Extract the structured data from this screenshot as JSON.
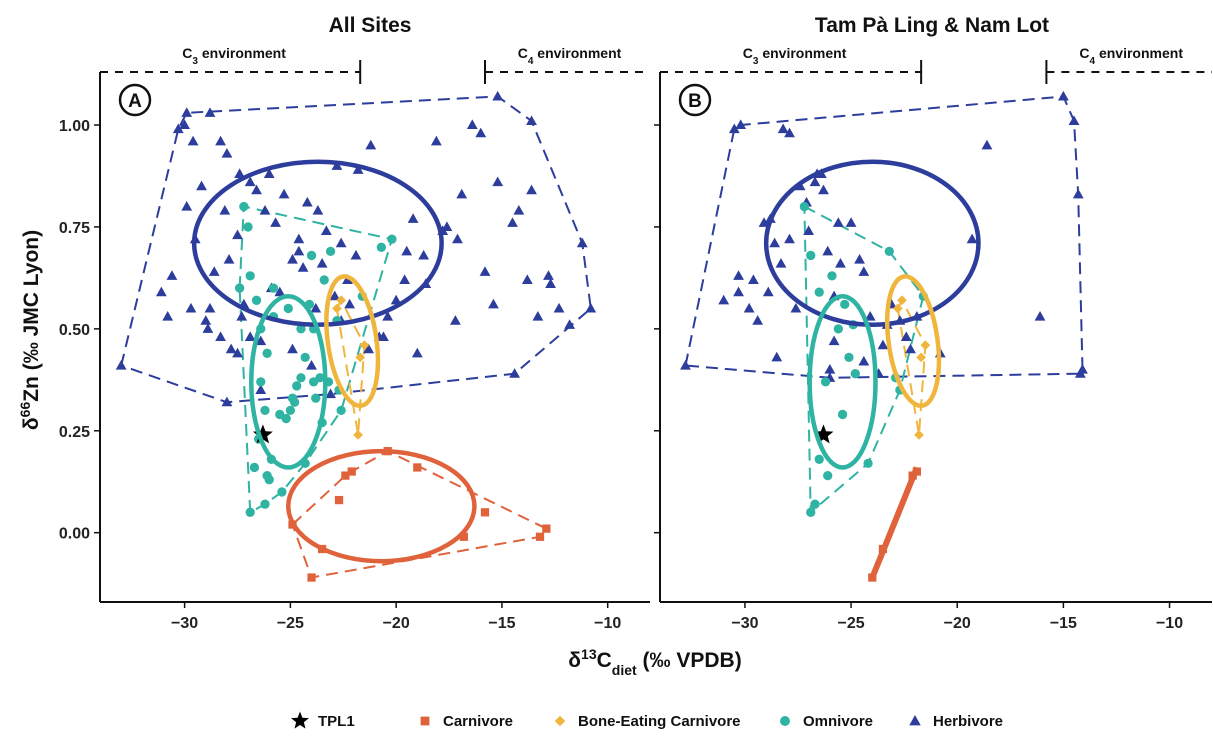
{
  "chart_data": [
    {
      "type": "scatter",
      "title": "All Sites",
      "panel_label": "A",
      "xlim": [
        -34,
        -8
      ],
      "ylim": [
        -0.17,
        1.13
      ],
      "xticks": [
        -30,
        -25,
        -20,
        -15,
        -10
      ],
      "xtick_labels": [
        "−30",
        "−25",
        "−20",
        "−15",
        "−10"
      ],
      "yticks": [
        0.0,
        0.25,
        0.5,
        0.75,
        1.0
      ],
      "ytick_labels": [
        "0.00",
        "0.25",
        "0.50",
        "0.75",
        "1.00"
      ],
      "env_c3": {
        "main": "C",
        "sub": "3",
        "rest": " environment",
        "end_x": -21.7
      },
      "env_c4": {
        "main": "C",
        "sub": "4",
        "rest": " environment",
        "start_x": -15.8
      },
      "series": [
        {
          "name": "TPL1",
          "x": [
            -26.3
          ],
          "y": [
            0.24
          ]
        },
        {
          "name": "Carnivore",
          "x": [
            -24.9,
            -23.5,
            -24.0,
            -22.4,
            -22.1,
            -22.7,
            -20.4,
            -19.0,
            -16.8,
            -15.8,
            -13.2,
            -12.9
          ],
          "y": [
            0.02,
            -0.04,
            -0.11,
            0.14,
            0.15,
            0.08,
            0.2,
            0.16,
            -0.01,
            0.05,
            -0.01,
            0.01
          ]
        },
        {
          "name": "Bone-Eating Carnivore",
          "x": [
            -22.6,
            -22.8,
            -21.5,
            -21.7,
            -21.8
          ],
          "y": [
            0.57,
            0.55,
            0.46,
            0.43,
            0.24
          ]
        },
        {
          "name": "Omnivore",
          "x": [
            -27.2,
            -26.9,
            -27.4,
            -26.6,
            -25.8,
            -25.1,
            -24.5,
            -24.3,
            -24.9,
            -26.4,
            -25.2,
            -26.1,
            -24.0,
            -22.8,
            -23.6,
            -23.2,
            -22.7,
            -21.6,
            -24.7,
            -25.5,
            -26.2,
            -26.5,
            -25.9,
            -24.3,
            -23.5,
            -23.9,
            -25.8,
            -26.4,
            -26.0,
            -26.1,
            -25.4,
            -26.2,
            -26.9,
            -26.7,
            -23.1,
            -23.4,
            -23.9,
            -24.1,
            -27.0,
            -24.5,
            -23.8,
            -22.6,
            -25.0,
            -24.8,
            -20.7,
            -20.2
          ],
          "y": [
            0.8,
            0.63,
            0.6,
            0.57,
            0.6,
            0.55,
            0.5,
            0.43,
            0.33,
            0.37,
            0.28,
            0.44,
            0.68,
            0.52,
            0.38,
            0.37,
            0.35,
            0.58,
            0.36,
            0.29,
            0.3,
            0.23,
            0.18,
            0.17,
            0.27,
            0.37,
            0.53,
            0.5,
            0.13,
            0.14,
            0.1,
            0.07,
            0.05,
            0.16,
            0.69,
            0.62,
            0.5,
            0.56,
            0.75,
            0.38,
            0.33,
            0.3,
            0.3,
            0.32,
            0.7,
            0.72
          ],
          "ellipse": {
            "cx": -25.1,
            "cy": 0.37,
            "rx": 1.75,
            "ry": 0.21,
            "angle": -0.05
          }
        },
        {
          "name": "Herbivore",
          "x": [
            -30.3,
            -30.0,
            -29.9,
            -29.5,
            -29.2,
            -28.8,
            -28.3,
            -28.8,
            -28.1,
            -27.9,
            -27.5,
            -27.2,
            -26.9,
            -26.6,
            -26.0,
            -25.7,
            -25.3,
            -24.9,
            -24.6,
            -24.2,
            -23.8,
            -23.5,
            -23.3,
            -22.9,
            -22.6,
            -22.3,
            -21.8,
            -21.2,
            -20.6,
            -20.0,
            -19.5,
            -19.2,
            -18.6,
            -18.1,
            -17.6,
            -17.1,
            -16.4,
            -15.8,
            -15.2,
            -14.5,
            -14.2,
            -13.8,
            -13.3,
            -12.7,
            -12.3,
            -11.8,
            -11.2,
            -10.8,
            -29.6,
            -28.6,
            -27.3,
            -26.4,
            -25.5,
            -24.6,
            -23.7,
            -22.8,
            -21.9,
            -27.5,
            -28.3,
            -29.0,
            -30.6,
            -31.1,
            -30.8,
            -29.7,
            -28.9,
            -27.8,
            -26.9,
            -25.9,
            -24.9,
            -24.0,
            -23.1,
            -22.2,
            -21.3,
            -20.4,
            -19.6,
            -18.7,
            -17.8,
            -16.9,
            -16.0,
            -15.2,
            -14.4,
            -13.6,
            -12.8,
            -29.9,
            -28.0,
            -26.2,
            -24.4,
            -22.6,
            -20.8,
            -19.0,
            -17.2,
            -15.4,
            -13.6,
            -33.0,
            -28.0,
            -27.4,
            -26.4
          ],
          "y": [
            0.99,
            1.0,
            0.8,
            0.72,
            0.85,
            1.03,
            0.96,
            0.55,
            0.79,
            0.67,
            0.73,
            0.56,
            0.86,
            0.84,
            0.88,
            0.76,
            0.83,
            0.67,
            0.72,
            0.81,
            0.55,
            0.66,
            0.74,
            0.58,
            0.71,
            0.62,
            0.89,
            0.95,
            0.48,
            0.57,
            0.69,
            0.77,
            0.61,
            0.96,
            0.75,
            0.72,
            1.0,
            0.64,
            0.86,
            0.76,
            0.79,
            0.62,
            0.53,
            0.61,
            0.55,
            0.51,
            0.71,
            0.55,
            0.96,
            0.64,
            0.53,
            0.47,
            0.59,
            0.69,
            0.79,
            0.9,
            0.68,
            0.44,
            0.48,
            0.52,
            0.63,
            0.59,
            0.53,
            0.55,
            0.5,
            0.45,
            0.48,
            0.6,
            0.45,
            0.41,
            0.34,
            0.56,
            0.45,
            0.53,
            0.62,
            0.68,
            0.74,
            0.83,
            0.98,
            1.07,
            0.39,
            1.01,
            0.63,
            1.03,
            0.93,
            0.79,
            0.65,
            0.52,
            0.48,
            0.44,
            0.52,
            0.56,
            0.84,
            0.41,
            0.32,
            0.88,
            0.35
          ],
          "ellipse": {
            "cx": -23.7,
            "cy": 0.71,
            "rx": 5.85,
            "ry": 0.2,
            "angle": 0.0
          }
        }
      ]
    },
    {
      "type": "scatter",
      "title": "Tam Pà Ling & Nam Lot",
      "panel_label": "B",
      "xlim": [
        -34,
        -8
      ],
      "ylim": [
        -0.17,
        1.13
      ],
      "xticks": [
        -30,
        -25,
        -20,
        -15,
        -10
      ],
      "xtick_labels": [
        "−30",
        "−25",
        "−20",
        "−15",
        "−10"
      ],
      "yticks": [
        0.0,
        0.25,
        0.5,
        0.75,
        1.0
      ],
      "ytick_labels": [
        "0.00",
        "0.25",
        "0.50",
        "0.75",
        "1.00"
      ],
      "env_c3": {
        "main": "C",
        "sub": "3",
        "rest": " environment",
        "end_x": -21.7
      },
      "env_c4": {
        "main": "C",
        "sub": "4",
        "rest": " environment",
        "start_x": -15.8
      },
      "series": [
        {
          "name": "TPL1",
          "x": [
            -26.3
          ],
          "y": [
            0.24
          ]
        },
        {
          "name": "Carnivore",
          "x": [
            -24.0,
            -23.5,
            -22.1,
            -21.9
          ],
          "y": [
            -0.11,
            -0.04,
            0.14,
            0.15
          ]
        },
        {
          "name": "Bone-Eating Carnivore",
          "x": [
            -22.6,
            -22.8,
            -21.5,
            -21.7,
            -21.8
          ],
          "y": [
            0.57,
            0.55,
            0.46,
            0.43,
            0.24
          ]
        },
        {
          "name": "Omnivore",
          "x": [
            -27.2,
            -26.9,
            -26.5,
            -25.9,
            -25.3,
            -24.9,
            -25.1,
            -25.4,
            -26.2,
            -26.5,
            -26.9,
            -26.7,
            -23.2,
            -22.9,
            -22.7,
            -21.6,
            -24.8,
            -25.6,
            -24.2,
            -26.1
          ],
          "y": [
            0.8,
            0.68,
            0.59,
            0.63,
            0.56,
            0.51,
            0.43,
            0.29,
            0.37,
            0.18,
            0.05,
            0.07,
            0.69,
            0.38,
            0.35,
            0.58,
            0.39,
            0.5,
            0.17,
            0.14
          ],
          "ellipse": {
            "cx": -25.4,
            "cy": 0.37,
            "rx": 1.55,
            "ry": 0.21,
            "angle": -0.05
          }
        },
        {
          "name": "Herbivore",
          "x": [
            -32.8,
            -30.5,
            -30.2,
            -30.3,
            -29.8,
            -29.4,
            -29.1,
            -28.6,
            -28.2,
            -27.9,
            -27.4,
            -27.1,
            -26.6,
            -26.3,
            -25.8,
            -25.5,
            -25.0,
            -24.6,
            -24.1,
            -23.5,
            -22.7,
            -22.4,
            -21.9,
            -19.3,
            -18.6,
            -16.1,
            -15.0,
            -14.5,
            -14.3,
            -14.2,
            -14.1,
            -29.6,
            -28.3,
            -27.0,
            -26.1,
            -25.8,
            -24.4,
            -23.7,
            -28.9,
            -27.6,
            -26.4,
            -23.1,
            -26.0,
            -30.3,
            -28.8,
            -27.9,
            -26.7,
            -25.6,
            -24.4,
            -23.3,
            -22.2,
            -20.8,
            -31.0,
            -28.5,
            -26.0
          ],
          "y": [
            0.41,
            0.99,
            1.0,
            0.59,
            0.55,
            0.52,
            0.76,
            0.71,
            0.99,
            0.98,
            0.85,
            0.81,
            0.88,
            0.84,
            0.58,
            0.66,
            0.76,
            0.67,
            0.53,
            0.46,
            0.52,
            0.48,
            0.53,
            0.72,
            0.95,
            0.53,
            1.07,
            1.01,
            0.83,
            0.39,
            0.4,
            0.62,
            0.66,
            0.74,
            0.69,
            0.47,
            0.42,
            0.39,
            0.59,
            0.55,
            0.88,
            0.56,
            0.4,
            0.63,
            0.77,
            0.72,
            0.86,
            0.76,
            0.64,
            0.51,
            0.45,
            0.44,
            0.57,
            0.43,
            0.38
          ],
          "ellipse": {
            "cx": -24.0,
            "cy": 0.71,
            "rx": 5.0,
            "ry": 0.2,
            "angle": 0.0
          }
        }
      ]
    }
  ],
  "axes": {
    "xlabel_main": "δ",
    "xlabel_sup": "13",
    "xlabel_c": "C",
    "xlabel_sub": "diet",
    "xlabel_rest": " (‰ VPDB)",
    "ylabel_main": "δ",
    "ylabel_sup": "66",
    "ylabel_rest": "Zn (‰ JMC Lyon)"
  },
  "legend": [
    {
      "label": "TPL1",
      "marker": "star",
      "color": "#000000"
    },
    {
      "label": "Carnivore",
      "marker": "square",
      "color": "#e0623b"
    },
    {
      "label": "Bone-Eating Carnivore",
      "marker": "diamond",
      "color": "#f0b53c"
    },
    {
      "label": "Omnivore",
      "marker": "circle",
      "color": "#2fb3a2"
    },
    {
      "label": "Herbivore",
      "marker": "triangle",
      "color": "#2d3d9c"
    }
  ],
  "colors": {
    "TPL1": "#000000",
    "Carnivore": "#e0623b",
    "Bone-Eating Carnivore": "#f0b53c",
    "Omnivore": "#2fb3a2",
    "Herbivore": "#2d3d9c"
  }
}
